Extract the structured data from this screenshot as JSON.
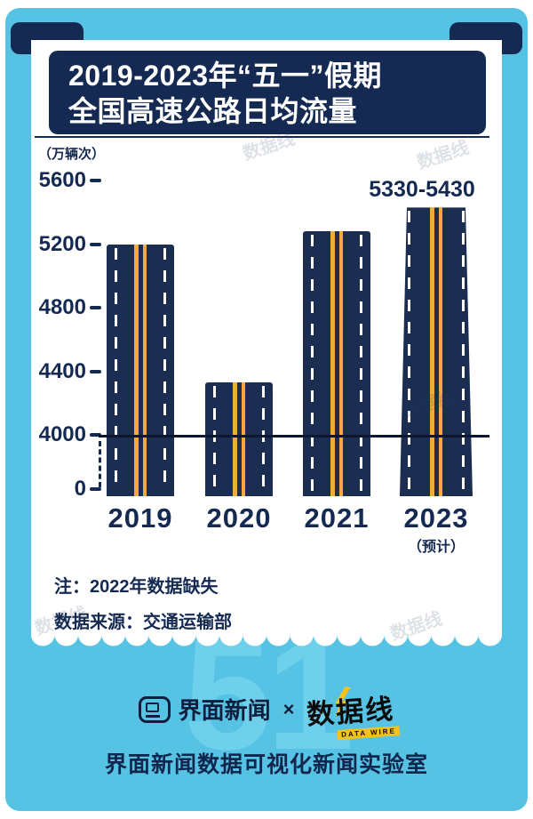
{
  "page": {
    "watermark_text": "数据线",
    "footer_watermark": "51"
  },
  "title": {
    "line1": "2019-2023年“五一”假期",
    "line2": "全国高速公路日均流量"
  },
  "chart_data": {
    "type": "bar",
    "title": "2019-2023年“五一”假期全国高速公路日均流量",
    "ylabel": "（万辆次）",
    "categories": [
      "2019",
      "2020",
      "2021",
      "2023"
    ],
    "values": [
      5200,
      4330,
      5280,
      5430
    ],
    "value_labels": [
      null,
      null,
      null,
      "5330-5430"
    ],
    "category_sublabels": [
      null,
      null,
      null,
      "（预计）"
    ],
    "yticks": [
      5600,
      5200,
      4800,
      4400,
      4000,
      0
    ],
    "ylim": [
      0,
      5600
    ],
    "axis_break": true,
    "reference_line": 4000,
    "grid": false,
    "legend": false,
    "bar_style": "highway-road",
    "colors": {
      "bar": "#1c2d52",
      "lane_line": "#ffffff",
      "center_line": "#f4a93c",
      "ink": "#152a52",
      "background": "#56c3e5"
    }
  },
  "notes": {
    "missing": "注：2022年数据缺失",
    "source": "数据来源：交通运输部"
  },
  "footer": {
    "jiemian_label": "界面新闻",
    "times_symbol": "×",
    "datawire_label": "数据线",
    "datawire_sub": "DATA WIRE",
    "lab_label": "界面新闻数据可视化新闻实验室"
  }
}
